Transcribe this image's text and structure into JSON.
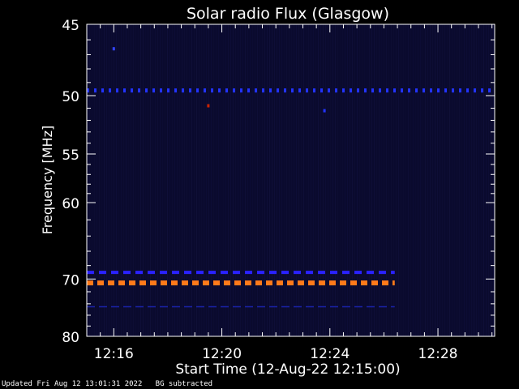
{
  "chart_data": {
    "type": "heatmap",
    "title": "Solar radio Flux (Glasgow)",
    "xlabel": "Start Time (12-Aug-22 12:15:00)",
    "ylabel_text": "Frequency ",
    "ylabel_unit": "MHz",
    "x_range_minutes": [
      15.0,
      30.1
    ],
    "x_ticks": [
      {
        "minute": 16,
        "label": "12:16"
      },
      {
        "minute": 20,
        "label": "12:20"
      },
      {
        "minute": 24,
        "label": "12:24"
      },
      {
        "minute": 28,
        "label": "12:28"
      }
    ],
    "y_range_mhz": [
      45,
      80
    ],
    "y_ticks": [
      45,
      50,
      55,
      60,
      70,
      80
    ],
    "y_minor_ticks": [
      46,
      47,
      48,
      49,
      51,
      52,
      53,
      54,
      56,
      57,
      58,
      59,
      62,
      64,
      66,
      68,
      72,
      74,
      76,
      78
    ],
    "y_scale": "reciprocal",
    "background_color": "#0a0a2e",
    "bands": [
      {
        "freq_mhz": 49.6,
        "start_min": 15.0,
        "end_min": 30.1,
        "color": "#2233ff",
        "style": "dotted"
      },
      {
        "freq_mhz": 69.0,
        "start_min": 15.0,
        "end_min": 26.4,
        "color": "#2a22ff",
        "style": "dashed"
      },
      {
        "freq_mhz": 70.6,
        "start_min": 15.0,
        "end_min": 26.4,
        "color": "#ff7a1a",
        "style": "dashed"
      },
      {
        "freq_mhz": 74.5,
        "start_min": 15.0,
        "end_min": 26.4,
        "color": "#1a22aa",
        "style": "dashed-thin"
      }
    ],
    "spots": [
      {
        "minute": 16.0,
        "freq_mhz": 46.6,
        "color": "#3344ff"
      },
      {
        "minute": 19.5,
        "freq_mhz": 50.8,
        "color": "#cc2200"
      },
      {
        "minute": 23.8,
        "freq_mhz": 51.2,
        "color": "#2233ff"
      }
    ]
  },
  "footer": {
    "updated": "Updated Fri Aug 12 13:01:31 2022",
    "note": "BG subtracted"
  }
}
